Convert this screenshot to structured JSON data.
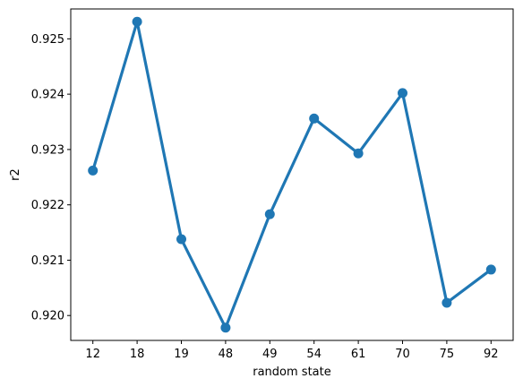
{
  "chart_data": {
    "type": "line",
    "xlabel": "random state",
    "ylabel": "r2",
    "categories": [
      "12",
      "18",
      "19",
      "48",
      "49",
      "54",
      "61",
      "70",
      "75",
      "92"
    ],
    "series": [
      {
        "values": [
          0.92262,
          0.92531,
          0.92138,
          0.91978,
          0.92183,
          0.92356,
          0.92293,
          0.92402,
          0.92023,
          0.92083
        ]
      }
    ],
    "ylim": [
      0.91955,
      0.92554
    ],
    "yticks": [
      "0.920",
      "0.921",
      "0.922",
      "0.923",
      "0.924",
      "0.925"
    ],
    "grid": false,
    "line_color": "#1f77b4"
  }
}
